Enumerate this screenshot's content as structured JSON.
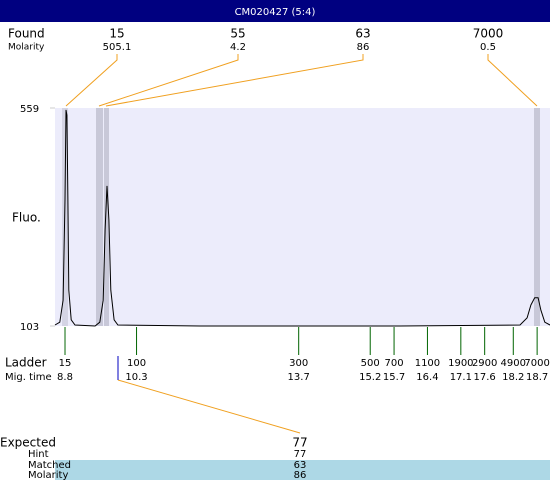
{
  "title": "CM020427 (5:4)",
  "found": {
    "label": "Found",
    "molarity_label": "Molarity",
    "peaks": [
      {
        "size": 15,
        "molarity": 505.1
      },
      {
        "size": 55,
        "molarity": 4.2
      },
      {
        "size": 63,
        "molarity": 86
      },
      {
        "size": 7000,
        "molarity": 0.5
      }
    ]
  },
  "plot": {
    "y_label": "Fluo.",
    "ylim": [
      103,
      559
    ],
    "yticks": [
      103,
      559
    ],
    "xlim": [
      8.59,
      18.97
    ],
    "trace": {
      "time": [
        8.59,
        8.69,
        8.76,
        8.8,
        8.82,
        8.84,
        8.86,
        8.88,
        8.93,
        9.01,
        9.43,
        9.53,
        9.6,
        9.64,
        9.68,
        9.72,
        9.76,
        9.83,
        9.91,
        11.63,
        15.82,
        18.34,
        18.49,
        18.57,
        18.65,
        18.72,
        18.78,
        18.86,
        18.97
      ],
      "fluo": [
        105,
        111,
        157,
        367,
        555,
        544,
        367,
        178,
        116,
        105,
        103,
        111,
        157,
        304,
        396,
        325,
        178,
        116,
        105,
        103,
        103,
        105,
        120,
        147,
        162,
        162,
        136,
        111,
        105
      ]
    }
  },
  "ladder": {
    "label": "Ladder",
    "time_label": "Mig. time",
    "sizes": [
      15,
      100,
      300,
      500,
      700,
      1100,
      1900,
      2900,
      4900,
      7000
    ],
    "times": [
      8.8,
      10.3,
      13.7,
      15.2,
      15.7,
      16.4,
      17.1,
      17.6,
      18.2,
      18.7
    ]
  },
  "expected": {
    "labels": [
      "Expected",
      "Hint",
      "Matched",
      "Molarity"
    ],
    "values": [
      77,
      77,
      63,
      86
    ]
  }
}
